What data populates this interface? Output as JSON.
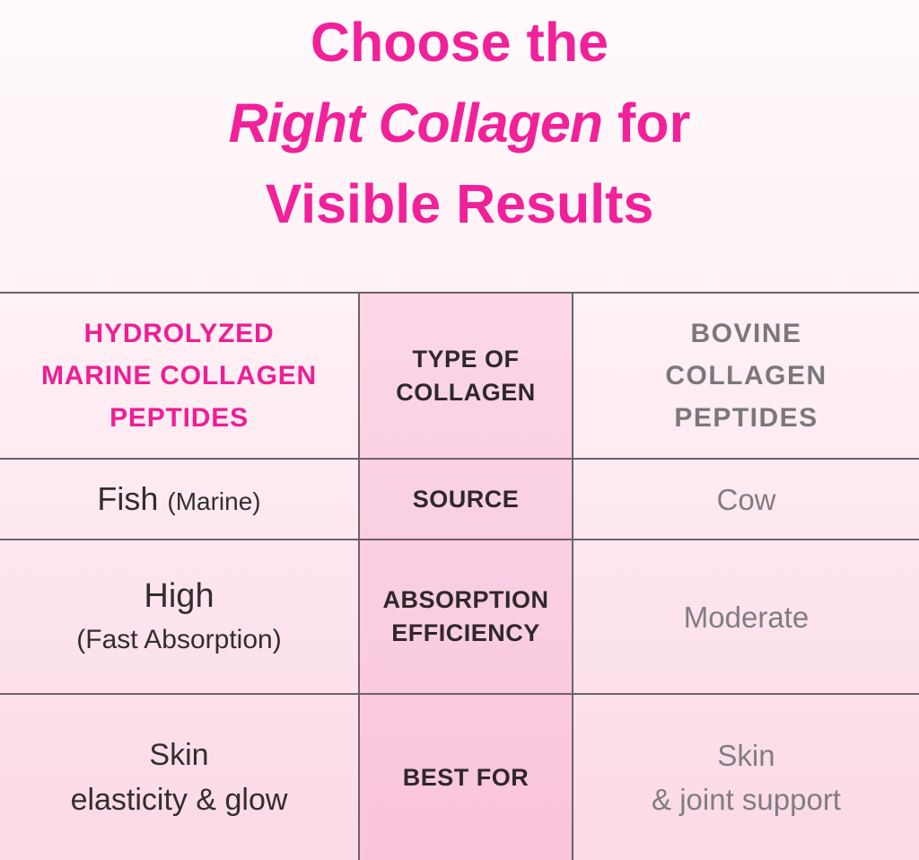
{
  "title": {
    "line1": "Choose the",
    "line2_emphasis": "Right Collagen",
    "line2_rest": " for",
    "line3": "Visible Results"
  },
  "table": {
    "header": {
      "left_line1": "HYDROLYZED",
      "left_line2": "MARINE COLLAGEN",
      "left_line3": "PEPTIDES",
      "center_line1": "TYPE OF",
      "center_line2": "COLLAGEN",
      "right_line1": "BOVINE",
      "right_line2": "COLLAGEN",
      "right_line3": "PEPTIDES"
    },
    "source_row": {
      "label": "SOURCE",
      "left_value": "Fish",
      "left_note": "(Marine)",
      "right_value": "Cow"
    },
    "absorption_row": {
      "label_line1": "ABSORPTION",
      "label_line2": "EFFICIENCY",
      "left_value": "High",
      "left_note": "(Fast Absorption)",
      "right_value": "Moderate"
    },
    "best_for_row": {
      "label": "BEST FOR",
      "left_line1": "Skin",
      "left_line2": "elasticity & glow",
      "right_line1": "Skin",
      "right_line2": "& joint support"
    }
  },
  "colors": {
    "accent_pink": "#F1219A",
    "header_pink": "#EE1E95",
    "dark_text": "#2E282B",
    "gray_text": "#7B777C",
    "value_gray": "#817D82",
    "border": "#6E6169",
    "center_column_tint": "#FAD2E5",
    "background_top": "#FFFAFC",
    "background_bottom": "#FBD9E7"
  }
}
